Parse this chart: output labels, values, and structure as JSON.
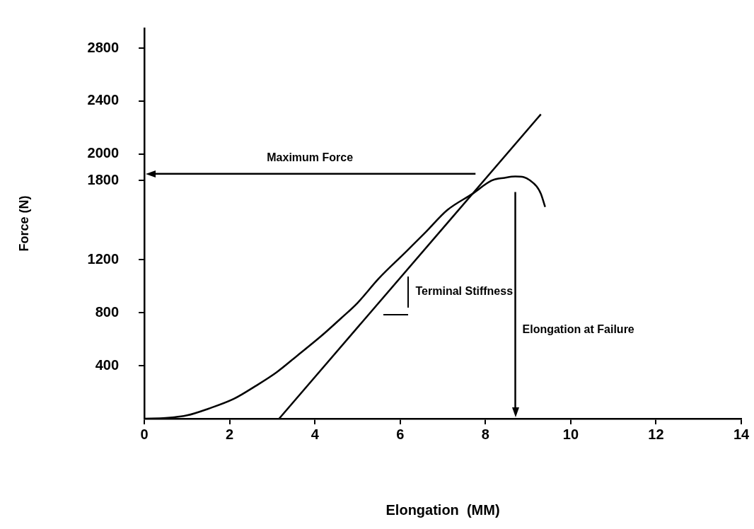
{
  "chart_data": {
    "type": "line",
    "xlabel": "Elongation  (MM)",
    "ylabel": "Force (N)",
    "xlim": [
      0,
      14
    ],
    "xticks": [
      0,
      2,
      4,
      6,
      8,
      10,
      12,
      14
    ],
    "ylim": [
      0,
      2950
    ],
    "yticks": [
      400,
      800,
      1200,
      1800,
      2000,
      2400,
      2800
    ],
    "marker": "none",
    "line_style": "solid",
    "legend": false,
    "series": [
      {
        "color": "#000000",
        "x": [
          0,
          0.5,
          1,
          1.5,
          2.1,
          2.6,
          3.1,
          3.6,
          4.15,
          4.6,
          5,
          5.5,
          6.1,
          6.6,
          7.1,
          7.7,
          8.15,
          8.45,
          8.7,
          8.9,
          9.05,
          9.2,
          9.3,
          9.4
        ],
        "values": [
          0,
          5,
          25,
          75,
          150,
          245,
          350,
          480,
          625,
          755,
          875,
          1060,
          1250,
          1410,
          1575,
          1700,
          1800,
          1820,
          1830,
          1825,
          1800,
          1755,
          1700,
          1600
        ]
      },
      {
        "type": "line",
        "color": "#000000",
        "x": [
          3.16,
          9.3
        ],
        "values": [
          0,
          2300
        ]
      }
    ],
    "ref_lines": [
      {
        "axis": "y",
        "value": 1850,
        "label": "Maximum Force"
      },
      {
        "axis": "x",
        "value": 8.7,
        "label": "Elongation at Failure"
      }
    ],
    "annotations": [
      "Terminal Stiffness"
    ]
  }
}
